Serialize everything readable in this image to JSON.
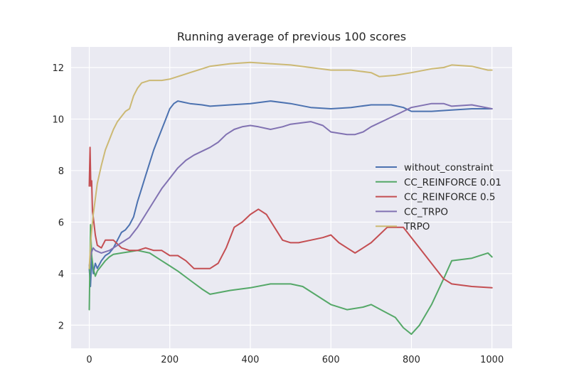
{
  "chart_data": {
    "type": "line",
    "title": "Running average of previous 100 scores",
    "xlabel": "",
    "ylabel": "",
    "xlim": [
      -45,
      1050
    ],
    "ylim": [
      1.1,
      12.8
    ],
    "x_ticks": [
      0,
      200,
      400,
      600,
      800,
      1000
    ],
    "y_ticks": [
      2,
      4,
      6,
      8,
      10,
      12
    ],
    "grid": true,
    "legend_position": "center-right",
    "background_color": "#EAEAF2",
    "series": [
      {
        "name": "without_constraint",
        "color": "#4C72B0",
        "points": [
          [
            0,
            4.2
          ],
          [
            3,
            3.5
          ],
          [
            6,
            4.6
          ],
          [
            10,
            4.0
          ],
          [
            15,
            4.4
          ],
          [
            20,
            4.2
          ],
          [
            30,
            4.5
          ],
          [
            40,
            4.7
          ],
          [
            50,
            4.8
          ],
          [
            60,
            5.0
          ],
          [
            70,
            5.3
          ],
          [
            80,
            5.6
          ],
          [
            90,
            5.7
          ],
          [
            100,
            5.9
          ],
          [
            110,
            6.2
          ],
          [
            120,
            6.8
          ],
          [
            130,
            7.3
          ],
          [
            140,
            7.8
          ],
          [
            150,
            8.3
          ],
          [
            160,
            8.8
          ],
          [
            170,
            9.2
          ],
          [
            180,
            9.6
          ],
          [
            190,
            10.0
          ],
          [
            200,
            10.4
          ],
          [
            210,
            10.6
          ],
          [
            220,
            10.7
          ],
          [
            250,
            10.6
          ],
          [
            280,
            10.55
          ],
          [
            300,
            10.5
          ],
          [
            350,
            10.55
          ],
          [
            400,
            10.6
          ],
          [
            450,
            10.7
          ],
          [
            500,
            10.6
          ],
          [
            550,
            10.45
          ],
          [
            600,
            10.4
          ],
          [
            650,
            10.45
          ],
          [
            700,
            10.55
          ],
          [
            750,
            10.55
          ],
          [
            780,
            10.45
          ],
          [
            800,
            10.3
          ],
          [
            850,
            10.3
          ],
          [
            900,
            10.35
          ],
          [
            950,
            10.4
          ],
          [
            1000,
            10.4
          ]
        ]
      },
      {
        "name": "CC_REINFORCE 0.01",
        "color": "#55A868",
        "points": [
          [
            0,
            2.6
          ],
          [
            3,
            5.9
          ],
          [
            6,
            4.7
          ],
          [
            10,
            4.2
          ],
          [
            15,
            3.9
          ],
          [
            20,
            4.1
          ],
          [
            30,
            4.3
          ],
          [
            40,
            4.5
          ],
          [
            50,
            4.65
          ],
          [
            60,
            4.75
          ],
          [
            80,
            4.8
          ],
          [
            100,
            4.85
          ],
          [
            120,
            4.9
          ],
          [
            150,
            4.8
          ],
          [
            180,
            4.5
          ],
          [
            200,
            4.3
          ],
          [
            220,
            4.1
          ],
          [
            250,
            3.75
          ],
          [
            280,
            3.4
          ],
          [
            300,
            3.2
          ],
          [
            350,
            3.35
          ],
          [
            400,
            3.45
          ],
          [
            450,
            3.6
          ],
          [
            500,
            3.6
          ],
          [
            530,
            3.5
          ],
          [
            560,
            3.2
          ],
          [
            600,
            2.8
          ],
          [
            640,
            2.6
          ],
          [
            680,
            2.7
          ],
          [
            700,
            2.8
          ],
          [
            730,
            2.55
          ],
          [
            760,
            2.3
          ],
          [
            780,
            1.9
          ],
          [
            800,
            1.65
          ],
          [
            820,
            2.0
          ],
          [
            850,
            2.8
          ],
          [
            880,
            3.8
          ],
          [
            900,
            4.5
          ],
          [
            950,
            4.6
          ],
          [
            990,
            4.8
          ],
          [
            1000,
            4.65
          ]
        ]
      },
      {
        "name": "CC_REINFORCE 0.5",
        "color": "#C44E52",
        "points": [
          [
            0,
            7.4
          ],
          [
            2,
            8.9
          ],
          [
            4,
            7.4
          ],
          [
            6,
            7.6
          ],
          [
            8,
            6.4
          ],
          [
            10,
            6.2
          ],
          [
            15,
            5.5
          ],
          [
            20,
            5.1
          ],
          [
            30,
            5.0
          ],
          [
            40,
            5.3
          ],
          [
            60,
            5.3
          ],
          [
            80,
            5.0
          ],
          [
            100,
            4.9
          ],
          [
            120,
            4.9
          ],
          [
            140,
            5.0
          ],
          [
            160,
            4.9
          ],
          [
            180,
            4.9
          ],
          [
            200,
            4.7
          ],
          [
            220,
            4.7
          ],
          [
            240,
            4.5
          ],
          [
            260,
            4.2
          ],
          [
            300,
            4.2
          ],
          [
            320,
            4.4
          ],
          [
            340,
            5.0
          ],
          [
            360,
            5.8
          ],
          [
            380,
            6.0
          ],
          [
            400,
            6.3
          ],
          [
            420,
            6.5
          ],
          [
            440,
            6.3
          ],
          [
            460,
            5.8
          ],
          [
            480,
            5.3
          ],
          [
            500,
            5.2
          ],
          [
            520,
            5.2
          ],
          [
            550,
            5.3
          ],
          [
            580,
            5.4
          ],
          [
            600,
            5.5
          ],
          [
            620,
            5.2
          ],
          [
            640,
            5.0
          ],
          [
            660,
            4.8
          ],
          [
            680,
            5.0
          ],
          [
            700,
            5.2
          ],
          [
            720,
            5.5
          ],
          [
            740,
            5.8
          ],
          [
            760,
            5.8
          ],
          [
            780,
            5.8
          ],
          [
            800,
            5.4
          ],
          [
            820,
            5.0
          ],
          [
            840,
            4.6
          ],
          [
            860,
            4.2
          ],
          [
            880,
            3.8
          ],
          [
            900,
            3.6
          ],
          [
            950,
            3.5
          ],
          [
            1000,
            3.45
          ]
        ]
      },
      {
        "name": "CC_TRPO",
        "color": "#8172B2",
        "points": [
          [
            0,
            4.3
          ],
          [
            5,
            4.8
          ],
          [
            10,
            5.0
          ],
          [
            15,
            4.9
          ],
          [
            30,
            4.8
          ],
          [
            50,
            4.9
          ],
          [
            80,
            5.2
          ],
          [
            100,
            5.4
          ],
          [
            120,
            5.8
          ],
          [
            140,
            6.3
          ],
          [
            160,
            6.8
          ],
          [
            180,
            7.3
          ],
          [
            200,
            7.7
          ],
          [
            220,
            8.1
          ],
          [
            240,
            8.4
          ],
          [
            260,
            8.6
          ],
          [
            300,
            8.9
          ],
          [
            320,
            9.1
          ],
          [
            340,
            9.4
          ],
          [
            360,
            9.6
          ],
          [
            380,
            9.7
          ],
          [
            400,
            9.75
          ],
          [
            420,
            9.7
          ],
          [
            450,
            9.6
          ],
          [
            480,
            9.7
          ],
          [
            500,
            9.8
          ],
          [
            550,
            9.9
          ],
          [
            580,
            9.75
          ],
          [
            600,
            9.5
          ],
          [
            640,
            9.4
          ],
          [
            660,
            9.4
          ],
          [
            680,
            9.5
          ],
          [
            700,
            9.7
          ],
          [
            740,
            10.0
          ],
          [
            780,
            10.3
          ],
          [
            800,
            10.45
          ],
          [
            850,
            10.6
          ],
          [
            880,
            10.6
          ],
          [
            900,
            10.5
          ],
          [
            950,
            10.55
          ],
          [
            1000,
            10.4
          ]
        ]
      },
      {
        "name": "TRPO",
        "color": "#CCB974",
        "points": [
          [
            0,
            4.2
          ],
          [
            2,
            4.8
          ],
          [
            5,
            5.5
          ],
          [
            10,
            6.3
          ],
          [
            15,
            6.9
          ],
          [
            20,
            7.5
          ],
          [
            30,
            8.2
          ],
          [
            40,
            8.8
          ],
          [
            50,
            9.2
          ],
          [
            60,
            9.6
          ],
          [
            70,
            9.9
          ],
          [
            80,
            10.1
          ],
          [
            90,
            10.3
          ],
          [
            100,
            10.4
          ],
          [
            110,
            10.9
          ],
          [
            120,
            11.2
          ],
          [
            130,
            11.4
          ],
          [
            150,
            11.5
          ],
          [
            180,
            11.5
          ],
          [
            200,
            11.55
          ],
          [
            220,
            11.65
          ],
          [
            250,
            11.8
          ],
          [
            280,
            11.95
          ],
          [
            300,
            12.05
          ],
          [
            350,
            12.15
          ],
          [
            400,
            12.2
          ],
          [
            450,
            12.15
          ],
          [
            500,
            12.1
          ],
          [
            550,
            12.0
          ],
          [
            600,
            11.9
          ],
          [
            650,
            11.9
          ],
          [
            700,
            11.8
          ],
          [
            720,
            11.65
          ],
          [
            760,
            11.7
          ],
          [
            800,
            11.8
          ],
          [
            850,
            11.95
          ],
          [
            880,
            12.0
          ],
          [
            900,
            12.1
          ],
          [
            950,
            12.05
          ],
          [
            990,
            11.9
          ],
          [
            1000,
            11.9
          ]
        ]
      }
    ]
  }
}
